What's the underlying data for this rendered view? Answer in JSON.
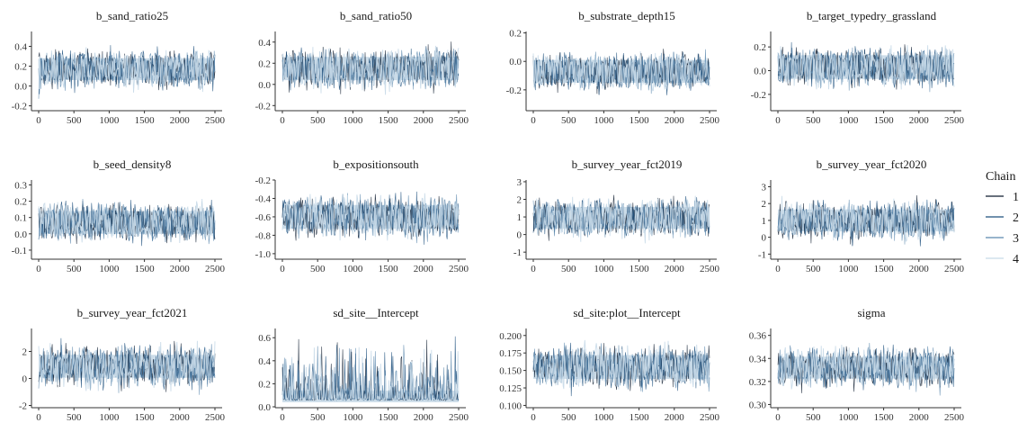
{
  "chart_data": {
    "type": "line",
    "description_kind": "mcmc-trace-plot",
    "x_ticks": [
      0,
      500,
      1000,
      1500,
      2000,
      2500
    ],
    "x_range": [
      0,
      2500
    ],
    "legend": {
      "title": "Chain",
      "entries": [
        "1",
        "2",
        "3",
        "4"
      ],
      "placement": "right"
    },
    "series_colors": [
      "#0d1b2e",
      "#1c4f7c",
      "#5a87ad",
      "#c7d9e8"
    ],
    "panels": [
      {
        "title": "b_sand_ratio25",
        "y_ticks": [
          -0.2,
          0.0,
          0.2,
          0.4
        ],
        "y_tick_labels": [
          "-0.2",
          "0.0",
          "0.2",
          "0.4"
        ],
        "y_range": [
          -0.24,
          0.55
        ],
        "center": 0.17,
        "spread": 0.11,
        "spike": 0.05
      },
      {
        "title": "b_sand_ratio50",
        "y_ticks": [
          -0.2,
          0.0,
          0.2,
          0.4
        ],
        "y_tick_labels": [
          "-0.2",
          "0.0",
          "0.2",
          "0.4"
        ],
        "y_range": [
          -0.24,
          0.5
        ],
        "center": 0.15,
        "spread": 0.11,
        "spike": 0.05
      },
      {
        "title": "b_substrate_depth15",
        "y_ticks": [
          -0.2,
          0.0,
          0.2
        ],
        "y_tick_labels": [
          "-0.2",
          "0.0",
          "0.2"
        ],
        "y_range": [
          -0.34,
          0.21
        ],
        "center": -0.07,
        "spread": 0.08,
        "spike": 0.03
      },
      {
        "title": "b_target_typedry_grassland",
        "y_ticks": [
          -0.2,
          0.0,
          0.2
        ],
        "y_tick_labels": [
          "-0.2",
          "0.0",
          "0.2"
        ],
        "y_range": [
          -0.33,
          0.33
        ],
        "center": 0.03,
        "spread": 0.1,
        "spike": 0.04
      },
      {
        "title": "b_seed_density8",
        "y_ticks": [
          -0.1,
          0.0,
          0.1,
          0.2,
          0.3
        ],
        "y_tick_labels": [
          "-0.1",
          "0.0",
          "0.1",
          "0.2",
          "0.3"
        ],
        "y_range": [
          -0.15,
          0.33
        ],
        "center": 0.07,
        "spread": 0.07,
        "spike": 0.03
      },
      {
        "title": "b_expositionsouth",
        "y_ticks": [
          -1.0,
          -0.8,
          -0.6,
          -0.4,
          -0.2
        ],
        "y_tick_labels": [
          "-1.0",
          "-0.8",
          "-0.6",
          "-0.4",
          "-0.2"
        ],
        "y_range": [
          -1.05,
          -0.2
        ],
        "center": -0.6,
        "spread": 0.13,
        "spike": 0.06
      },
      {
        "title": "b_survey_year_fct2019",
        "y_ticks": [
          -1,
          0,
          1,
          2,
          3
        ],
        "y_tick_labels": [
          "-1",
          "0",
          "1",
          "2",
          "3"
        ],
        "y_range": [
          -1.35,
          3.1
        ],
        "center": 0.95,
        "spread": 0.62,
        "spike": 0.3
      },
      {
        "title": "b_survey_year_fct2020",
        "y_ticks": [
          -1,
          0,
          1,
          2,
          3
        ],
        "y_tick_labels": [
          "-1",
          "0",
          "1",
          "2",
          "3"
        ],
        "y_range": [
          -1.25,
          3.4
        ],
        "center": 1.0,
        "spread": 0.65,
        "spike": 0.3
      },
      {
        "title": "b_survey_year_fct2021",
        "y_ticks": [
          -2,
          0,
          2
        ],
        "y_tick_labels": [
          "-2",
          "0",
          "2"
        ],
        "y_range": [
          -2.1,
          3.7
        ],
        "center": 0.9,
        "spread": 0.85,
        "spike": 0.45
      },
      {
        "title": "sd_site__Intercept",
        "y_ticks": [
          0.0,
          0.2,
          0.4,
          0.6
        ],
        "y_tick_labels": [
          "0.0",
          "0.2",
          "0.4",
          "0.6"
        ],
        "y_range": [
          0.0,
          0.68
        ],
        "center": 0.09,
        "spread": 0.05,
        "spike": 0.12,
        "skewed": true
      },
      {
        "title": "sd_site:plot__Intercept",
        "y_ticks": [
          0.1,
          0.125,
          0.15,
          0.175,
          0.2
        ],
        "y_tick_labels": [
          "0.100",
          "0.125",
          "0.150",
          "0.175",
          "0.200"
        ],
        "y_range": [
          0.098,
          0.21
        ],
        "center": 0.155,
        "spread": 0.017,
        "spike": 0.008
      },
      {
        "title": "sigma",
        "y_ticks": [
          0.3,
          0.32,
          0.34,
          0.36
        ],
        "y_tick_labels": [
          "0.30",
          "0.32",
          "0.34",
          "0.36"
        ],
        "y_range": [
          0.298,
          0.366
        ],
        "center": 0.332,
        "spread": 0.0095,
        "spike": 0.005
      }
    ]
  }
}
